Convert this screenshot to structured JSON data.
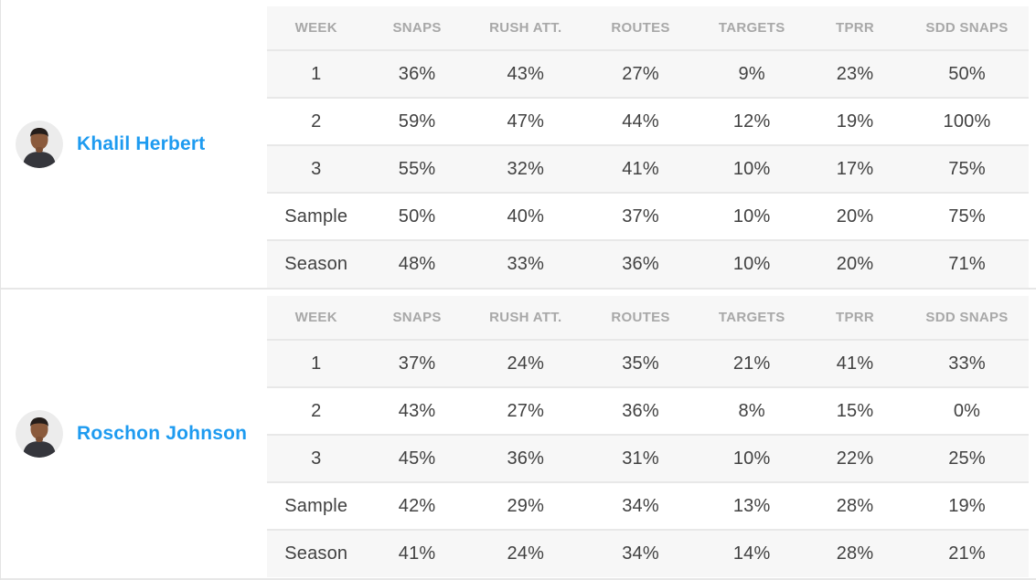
{
  "colors": {
    "accent_blue": "#1e9bf0",
    "header_text_gray": "#a8a8a8",
    "cell_text": "#414141",
    "row_shade": "#f7f7f7",
    "row_plain": "#ffffff",
    "divider": "#e8e8e8",
    "avatar_bg": "#ececec"
  },
  "columns": [
    "WEEK",
    "SNAPS",
    "RUSH ATT.",
    "ROUTES",
    "TARGETS",
    "TPRR",
    "SDD SNAPS"
  ],
  "players": [
    {
      "name": "Khalil Herbert",
      "avatar_icon": "player-headshot-icon",
      "rows": [
        {
          "week": "1",
          "values": [
            "36%",
            "43%",
            "27%",
            "9%",
            "23%",
            "50%"
          ]
        },
        {
          "week": "2",
          "values": [
            "59%",
            "47%",
            "44%",
            "12%",
            "19%",
            "100%"
          ]
        },
        {
          "week": "3",
          "values": [
            "55%",
            "32%",
            "41%",
            "10%",
            "17%",
            "75%"
          ]
        },
        {
          "week": "Sample",
          "values": [
            "50%",
            "40%",
            "37%",
            "10%",
            "20%",
            "75%"
          ]
        },
        {
          "week": "Season",
          "values": [
            "48%",
            "33%",
            "36%",
            "10%",
            "20%",
            "71%"
          ]
        }
      ]
    },
    {
      "name": "Roschon Johnson",
      "avatar_icon": "player-headshot-icon",
      "rows": [
        {
          "week": "1",
          "values": [
            "37%",
            "24%",
            "35%",
            "21%",
            "41%",
            "33%"
          ]
        },
        {
          "week": "2",
          "values": [
            "43%",
            "27%",
            "36%",
            "8%",
            "15%",
            "0%"
          ]
        },
        {
          "week": "3",
          "values": [
            "45%",
            "36%",
            "31%",
            "10%",
            "22%",
            "25%"
          ]
        },
        {
          "week": "Sample",
          "values": [
            "42%",
            "29%",
            "34%",
            "13%",
            "28%",
            "19%"
          ]
        },
        {
          "week": "Season",
          "values": [
            "41%",
            "24%",
            "34%",
            "14%",
            "28%",
            "21%"
          ]
        }
      ]
    }
  ]
}
